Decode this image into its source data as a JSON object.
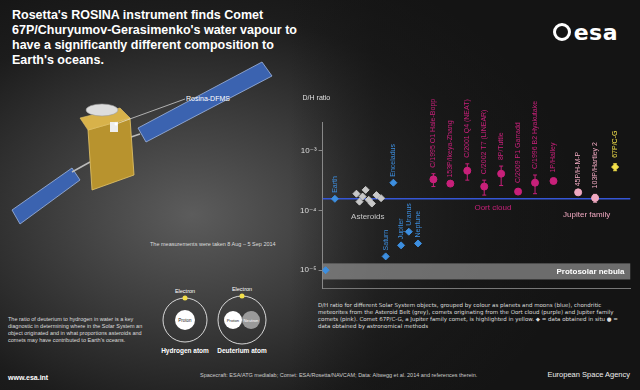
{
  "header": {
    "title": "Rosetta's ROSINA instrument finds Comet 67P/Churyumov-Gerasimenko's water vapour to have a significantly different composition to Earth's oceans.",
    "logo": "esa"
  },
  "spacecraft": {
    "label": "Rosina-DFMS",
    "note": "The measurements were taken 8 Aug – 5 Sep 2014"
  },
  "atoms": {
    "electron": "Electron",
    "proton": "Proton",
    "neutron": "Neutron",
    "hydrogen": "Hydrogen atom",
    "deuterium": "Deuterium atom"
  },
  "caption": "The ratio of deuterium to hydrogen in water is a key diagnostic in determining where in the Solar System an object originated and in what proportions asteroids and comets may have contributed to Earth's oceans.",
  "website": "www.esa.int",
  "credits": "Spacecraft: ESA/ATG medialab; Comet: ESA/Rosetta/NAVCAM; Data: Altwegg et al. 2014 and references therein.",
  "agency": "European Space Agency",
  "chart_data": {
    "type": "scatter",
    "ylabel": "D/H ratio",
    "log": "y",
    "grid": false,
    "tick_labels": "y",
    "xlim": [
      0,
      100
    ],
    "ylim": [
      5e-06,
      0.003
    ],
    "yticks": [
      {
        "value": 1e-05,
        "label": "10⁻⁵"
      },
      {
        "value": 0.0001,
        "label": "10⁻⁴"
      },
      {
        "value": 0.001,
        "label": "10⁻³"
      }
    ],
    "reference_line": {
      "value": 0.000156,
      "color": "#3556d6"
    },
    "band": {
      "name": "Protosolar nebula",
      "range": [
        7e-06,
        1.3e-05
      ],
      "color": "#8a8a8a"
    },
    "caption": "D/H ratio for different Solar System objects, grouped by colour as planets and moons (blue), chondritic meteorites from the Asteroid Belt (grey), comets originating from the Oort cloud (purple) and Jupiter family comets (pink). Comet 67P/C-G, a Jupiter family comet, is highlighted in yellow. ◆ = data obtained in situ ● = data obtained by astronomical methods",
    "series": [
      {
        "color": "#3d8fe0",
        "marker": "diamond",
        "x": [
          1,
          4,
          20.5,
          23,
          25.5,
          28,
          31
        ],
        "values": [
          1e-05,
          0.000156,
          1.7e-05,
          0.00029,
          2.6e-05,
          4.4e-05,
          2.8e-05
        ],
        "labels": [
          null,
          "Earth",
          "Saturn",
          "Enceladus",
          "Jupiter",
          "Uranus",
          "Neptune"
        ]
      },
      {
        "name": "Asteroids",
        "color": "#c8c8c8",
        "marker": "diamond",
        "x": [
          11,
          12,
          13,
          14,
          15,
          16,
          17.5,
          19
        ],
        "values": [
          0.00019,
          0.00014,
          0.00017,
          0.00022,
          0.00015,
          0.00013,
          0.00018,
          0.00016
        ]
      },
      {
        "name": "Oort cloud",
        "color": "#c8207a",
        "marker": "circle",
        "x": [
          36,
          41.5,
          47,
          52.5,
          58,
          63.5,
          69,
          75
        ],
        "values": [
          0.00033,
          0.00028,
          0.00046,
          0.00025,
          0.00041,
          0.000206,
          0.00029,
          0.00031
        ],
        "errors": [
          [
            0.00025,
            0.00041
          ],
          null,
          [
            0.00032,
            0.0006
          ],
          [
            0.00018,
            0.00032
          ],
          [
            0.00026,
            0.00055
          ],
          [
            0.000184,
            0.000228
          ],
          [
            0.00019,
            0.00039
          ],
          [
            0.00028,
            0.00034
          ]
        ],
        "labels": [
          "C/1995 O1 Hale-Bopp",
          "153P/Ikeya-Zhang",
          "C/2001 Q4 (NEAT)",
          "C/2002 T7 (LINEAR)",
          "8P/Tuttle",
          "C/2009 P1 Garradd",
          "C/1996 B2 Hyakutake",
          "1P/Halley"
        ]
      },
      {
        "name": "Jupiter family",
        "color": "#f0a8c0",
        "marker": "circle",
        "x": [
          83,
          88.5
        ],
        "values": [
          0.0002,
          0.000161
        ],
        "errors": [
          null,
          [
            0.000137,
            0.000185
          ]
        ],
        "labels": [
          "45P/H-M-P",
          "103P/Hartley 2"
        ]
      },
      {
        "color": "#f3e04a",
        "marker": "diamond",
        "x": [
          95
        ],
        "values": [
          0.00053
        ],
        "errors": [
          [
            0.00046,
            0.0006
          ]
        ],
        "labels": [
          "67P/C-G"
        ]
      }
    ]
  }
}
